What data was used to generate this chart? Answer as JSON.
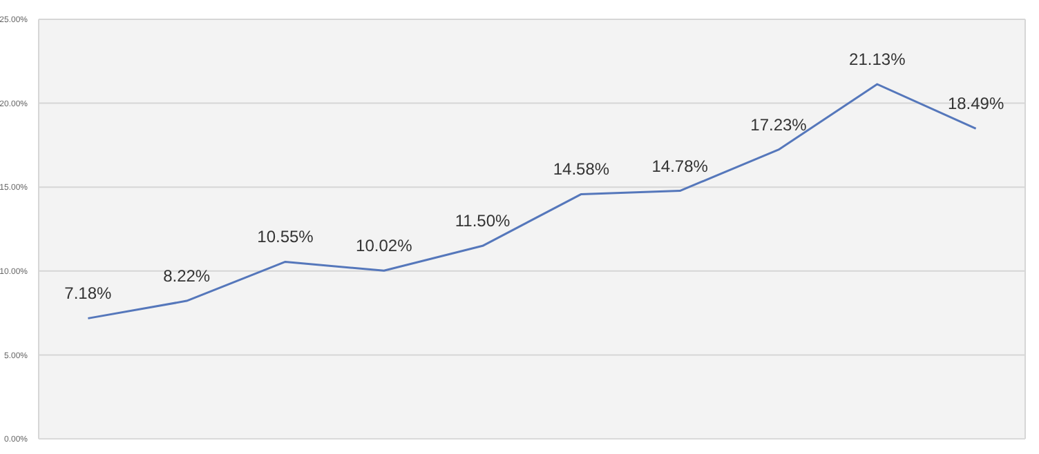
{
  "chart_data": {
    "type": "line",
    "categories": [
      null,
      null,
      null,
      null,
      null,
      null,
      null,
      null,
      null,
      null
    ],
    "series": [
      {
        "color": "#5577bb",
        "values": [
          7.18,
          8.22,
          10.55,
          10.02,
          11.5,
          14.58,
          14.78,
          17.23,
          21.13,
          18.49
        ],
        "value_labels": [
          "7.18%",
          "8.22%",
          "10.55%",
          "10.02%",
          "11.50%",
          "14.58%",
          "14.78%",
          "17.23%",
          "21.13%",
          "18.49%"
        ]
      }
    ],
    "ylim": [
      0,
      25
    ],
    "yticks": [
      {
        "value": 0,
        "label": "0.00%"
      },
      {
        "value": 5,
        "label": "5.00%"
      },
      {
        "value": 10,
        "label": "10.00%"
      },
      {
        "value": 15,
        "label": "15.00%"
      },
      {
        "value": 20,
        "label": "20.00%"
      },
      {
        "value": 25,
        "label": "25.00%"
      }
    ],
    "grid": true,
    "marker": "none",
    "tick_labels": "y"
  }
}
